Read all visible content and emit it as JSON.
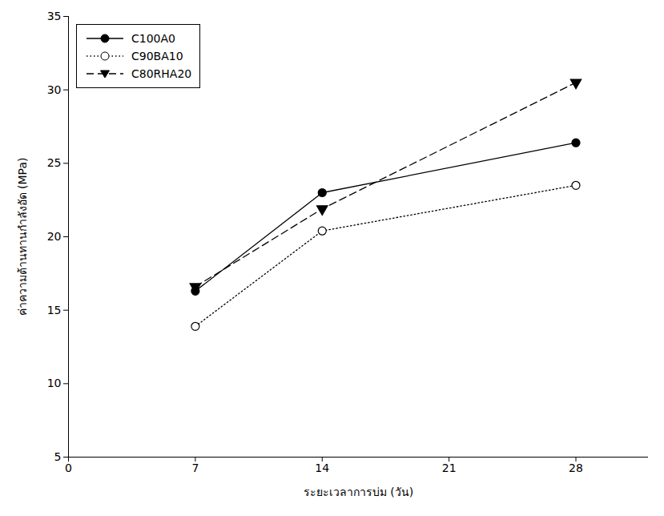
{
  "chart_data": {
    "type": "line",
    "x_label": "ระยะเวลาการบ่ม (วัน)",
    "y_label": "ค่าความต้านทานกำลังอัด (MPa)",
    "x": [
      7,
      14,
      28
    ],
    "series": [
      {
        "name": "C100A0",
        "color": "#000000",
        "marker": "filled_circle",
        "line_style": "solid",
        "values": [
          16.3,
          23.0,
          26.4
        ]
      },
      {
        "name": "C90BA10",
        "color": "#000000",
        "marker": "open_circle",
        "line_style": "dotted",
        "values": [
          13.9,
          20.4,
          23.5
        ]
      },
      {
        "name": "C80RHA20",
        "color": "#000000",
        "marker": "triangle_down",
        "line_style": "dashed",
        "values": [
          16.6,
          21.9,
          30.5
        ]
      }
    ],
    "xlim": [
      0,
      32
    ],
    "xticks": [
      0,
      7,
      14,
      21,
      28
    ],
    "ylim": [
      5,
      35
    ],
    "yticks": [
      5,
      10,
      15,
      20,
      25,
      30,
      35
    ],
    "grid": false,
    "legend": "top-left"
  }
}
